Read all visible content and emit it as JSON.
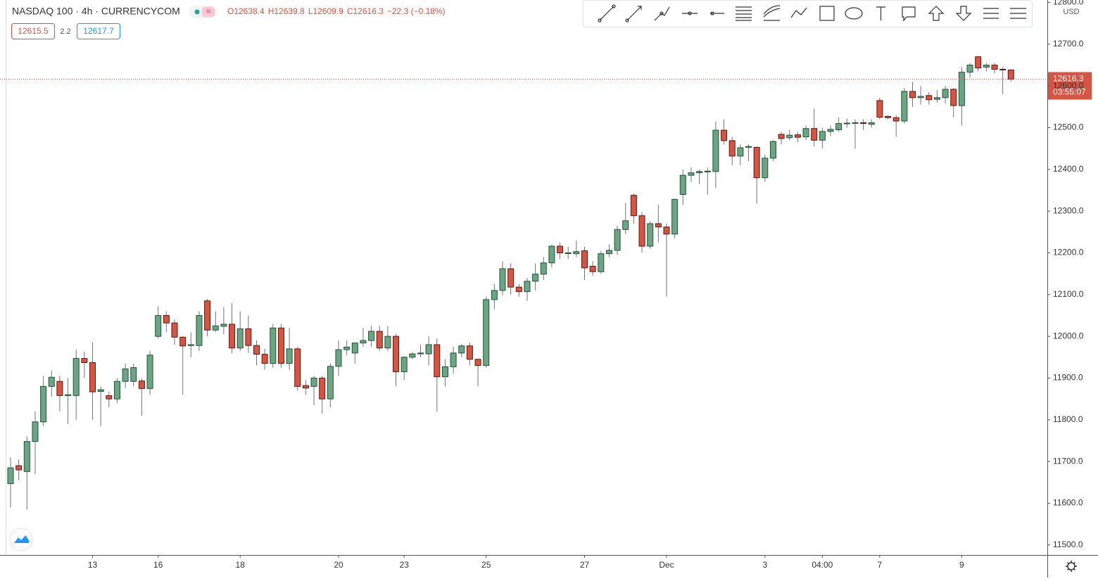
{
  "chart_data": {
    "type": "candlestick",
    "title": "NASDAQ 100 · 4h · CURRENCYCOM",
    "legend_values": [
      "O12638.4",
      "H12639.8",
      "L12609.9",
      "C12616.3"
    ],
    "change": "−22.3 (−0.18%)",
    "bid": "12615.5",
    "spread": "2.2",
    "ask": "12617.7",
    "currency": "USD",
    "countdown": "03:55:07",
    "up_color": "#6ba583",
    "down_color": "#d75442",
    "grid": false,
    "ylim": [
      11476,
      12806
    ],
    "yticks": [
      {
        "value": 11500,
        "label": "11500.0"
      },
      {
        "value": 11600,
        "label": "11600.0"
      },
      {
        "value": 11700,
        "label": "11700.0"
      },
      {
        "value": 11800,
        "label": "11800.0"
      },
      {
        "value": 11900,
        "label": "11900.0"
      },
      {
        "value": 12000,
        "label": "12000.0"
      },
      {
        "value": 12100,
        "label": "12100.0"
      },
      {
        "value": 12200,
        "label": "12200.0"
      },
      {
        "value": 12300,
        "label": "12300.0"
      },
      {
        "value": 12400,
        "label": "12400.0"
      },
      {
        "value": 12500,
        "label": "12500.0"
      },
      {
        "value": 12600,
        "label": "12600.0"
      },
      {
        "value": 12700,
        "label": "12700.0"
      },
      {
        "value": 12800,
        "label": "12800.0"
      }
    ],
    "categories": [
      null,
      null,
      null,
      null,
      null,
      null,
      null,
      null,
      null,
      null,
      "13",
      null,
      null,
      null,
      null,
      null,
      null,
      null,
      "16",
      null,
      null,
      null,
      null,
      null,
      null,
      null,
      null,
      null,
      "18",
      null,
      null,
      null,
      null,
      null,
      null,
      null,
      null,
      null,
      null,
      null,
      "20",
      null,
      null,
      null,
      null,
      null,
      null,
      null,
      "23",
      null,
      null,
      null,
      null,
      null,
      null,
      null,
      null,
      null,
      "25",
      null,
      null,
      null,
      null,
      null,
      null,
      null,
      null,
      null,
      null,
      null,
      "27",
      null,
      null,
      null,
      null,
      null,
      null,
      null,
      null,
      null,
      "Dec",
      null,
      null,
      null,
      null,
      null,
      null,
      null,
      null,
      null,
      null,
      null,
      "3",
      null,
      null,
      null,
      null,
      null,
      null,
      "04:00",
      null,
      null,
      null,
      null,
      null,
      null,
      "7",
      null,
      null,
      null,
      null,
      null,
      null,
      null,
      null,
      null,
      "9",
      null,
      null,
      null,
      null,
      null,
      null
    ],
    "open": [
      11647,
      11690,
      11676,
      11748,
      11795,
      11880,
      11892,
      11858,
      11858,
      11947,
      11937,
      11868,
      11858,
      11850,
      11892,
      11892,
      11893,
      11875,
      12000,
      12050,
      12032,
      11998,
      11978,
      11978,
      12085,
      12015,
      12024,
      12029,
      11972,
      12018,
      11978,
      11957,
      11935,
      12020,
      11935,
      11970,
      11882,
      11880,
      11900,
      11850,
      11928,
      11968,
      11960,
      11984,
      11990,
      12012,
      11972,
      12000,
      11915,
      11950,
      11958,
      11958,
      11980,
      11903,
      11927,
      11960,
      11977,
      11945,
      11930,
      12088,
      12110,
      12162,
      12118,
      12107,
      12132,
      12149,
      12176,
      12216,
      12200,
      12198,
      12205,
      12168,
      12155,
      12198,
      12206,
      12256,
      12338,
      12289,
      12216,
      12270,
      12262,
      12245,
      12340,
      12386,
      12392,
      12394,
      12395,
      12494,
      12469,
      12432,
      12453,
      12453,
      12380,
      12427,
      12484,
      12476,
      12483,
      12478,
      12498,
      12470,
      12491,
      12495,
      12510,
      12511,
      12512,
      12508,
      12565,
      12527,
      12524,
      12516,
      12587,
      12572,
      12577,
      12568,
      12572,
      12592,
      12553,
      12633,
      12670,
      12645,
      12650,
      12640,
      12638.4
    ],
    "high": [
      11710,
      11705,
      11760,
      11820,
      11905,
      11918,
      11905,
      11900,
      11968,
      11963,
      11985,
      11880,
      11868,
      11900,
      11935,
      11935,
      11900,
      11965,
      12072,
      12060,
      12040,
      12000,
      12010,
      12060,
      12090,
      12060,
      12070,
      12080,
      12060,
      12050,
      11990,
      11970,
      12030,
      12030,
      12020,
      11975,
      11895,
      11905,
      11905,
      11935,
      11990,
      11990,
      11985,
      12020,
      12025,
      12025,
      12025,
      12005,
      11952,
      11962,
      11980,
      12000,
      11995,
      11945,
      11975,
      11982,
      11985,
      11945,
      12095,
      12125,
      12180,
      12175,
      12125,
      12140,
      12175,
      12190,
      12220,
      12225,
      12215,
      12230,
      12215,
      12180,
      12205,
      12220,
      12265,
      12320,
      12342,
      12298,
      12275,
      12315,
      12270,
      12330,
      12400,
      12405,
      12400,
      12405,
      12515,
      12520,
      12478,
      12460,
      12460,
      12455,
      12435,
      12470,
      12490,
      12495,
      12490,
      12505,
      12545,
      12500,
      12505,
      12525,
      12522,
      12520,
      12520,
      12520,
      12572,
      12530,
      12530,
      12595,
      12610,
      12600,
      12585,
      12590,
      12600,
      12595,
      12645,
      12655,
      12672,
      12655,
      12655,
      12645,
      12639.8
    ],
    "low": [
      11590,
      11655,
      11585,
      11670,
      11785,
      11855,
      11820,
      11790,
      11800,
      11900,
      11800,
      11785,
      11830,
      11840,
      11875,
      11880,
      11810,
      11860,
      11995,
      12010,
      11980,
      11860,
      11950,
      11965,
      12000,
      12010,
      12005,
      11960,
      11965,
      11960,
      11930,
      11920,
      11925,
      11925,
      11920,
      11870,
      11860,
      11835,
      11815,
      11830,
      11905,
      11955,
      11935,
      11975,
      11975,
      11965,
      11965,
      11880,
      11895,
      11945,
      11950,
      11930,
      11820,
      11880,
      11910,
      11950,
      11930,
      11880,
      11925,
      12065,
      12098,
      12100,
      12095,
      12085,
      12110,
      12135,
      12165,
      12185,
      12185,
      12190,
      12135,
      12145,
      12150,
      12190,
      12195,
      12245,
      12270,
      12200,
      12210,
      12225,
      12095,
      12235,
      12315,
      12370,
      12365,
      12340,
      12355,
      12460,
      12410,
      12410,
      12420,
      12318,
      12370,
      12420,
      12460,
      12470,
      12465,
      12470,
      12455,
      12450,
      12480,
      12490,
      12500,
      12450,
      12495,
      12500,
      12520,
      12520,
      12478,
      12510,
      12550,
      12555,
      12555,
      12560,
      12558,
      12525,
      12505,
      12620,
      12635,
      12635,
      12630,
      12580,
      12609.9
    ],
    "close": [
      11685,
      11680,
      11748,
      11795,
      11880,
      11902,
      11858,
      11860,
      11947,
      11937,
      11867,
      11872,
      11850,
      11892,
      11922,
      11925,
      11875,
      11955,
      12050,
      12032,
      11998,
      11977,
      11980,
      12050,
      12015,
      12025,
      12029,
      11972,
      12018,
      11978,
      11957,
      11935,
      12020,
      11935,
      11970,
      11880,
      11876,
      11900,
      11850,
      11928,
      11968,
      11974,
      11984,
      11990,
      12012,
      11972,
      12000,
      11915,
      11950,
      11958,
      11960,
      11980,
      11903,
      11927,
      11960,
      11977,
      11945,
      11930,
      12088,
      12110,
      12162,
      12118,
      12107,
      12132,
      12149,
      12176,
      12216,
      12200,
      12200,
      12203,
      12164,
      12155,
      12198,
      12206,
      12256,
      12277,
      12289,
      12216,
      12270,
      12262,
      12245,
      12328,
      12386,
      12392,
      12395,
      12396,
      12494,
      12469,
      12432,
      12452,
      12455,
      12380,
      12427,
      12467,
      12474,
      12482,
      12477,
      12498,
      12470,
      12491,
      12496,
      12510,
      12511,
      12512,
      12510,
      12512,
      12525,
      12524,
      12516,
      12587,
      12572,
      12575,
      12567,
      12572,
      12592,
      12553,
      12633,
      12650,
      12643,
      12650,
      12640,
      12639,
      12616.3
    ]
  }
}
